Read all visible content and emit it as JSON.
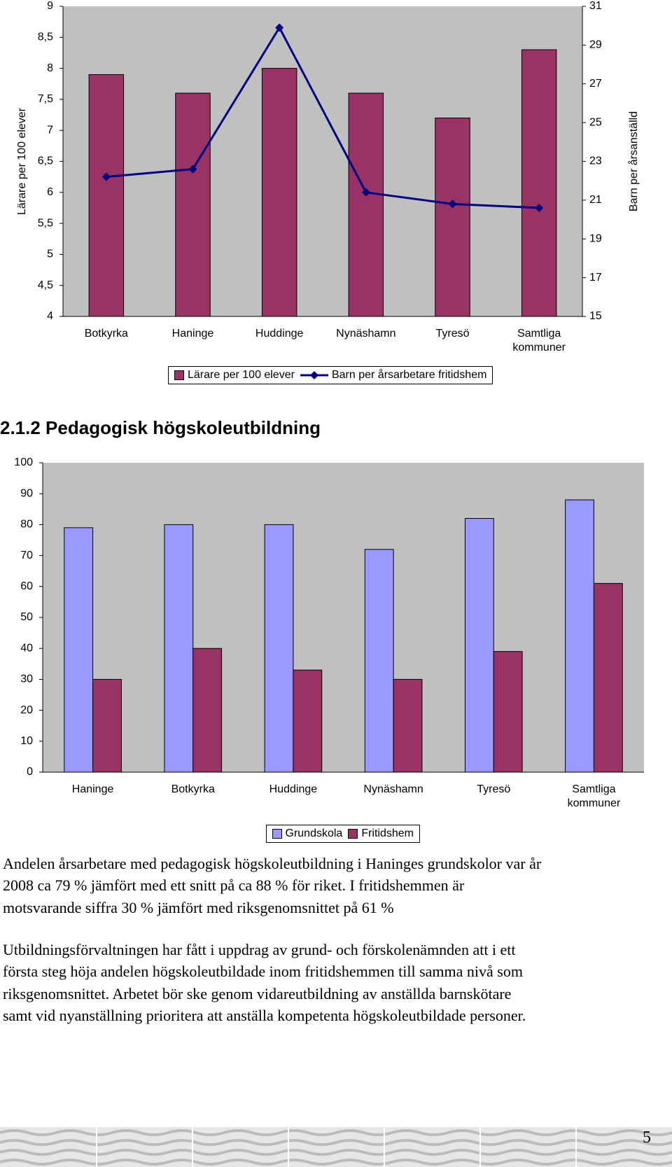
{
  "chart_data": [
    {
      "type": "bar",
      "categories": [
        "Botkyrka",
        "Haninge",
        "Huddinge",
        "Nynäshamn",
        "Tyresö",
        "Samtliga kommuner"
      ],
      "series": [
        {
          "name": "Lärare per 100 elever",
          "color": "#993366",
          "values": [
            7.9,
            7.6,
            8.0,
            7.6,
            7.2,
            8.3
          ]
        },
        {
          "name": "Barn per årsarbetare fritidshem",
          "color": "#000080",
          "type": "line",
          "axis": "y2",
          "values": [
            22.2,
            22.6,
            29.9,
            21.4,
            20.8,
            20.6
          ]
        }
      ],
      "ylabel": "Lärare per 100 elever",
      "y2label": "Barn per årsanställd",
      "ylim": [
        4,
        9
      ],
      "yticks": [
        4,
        {
          "value": 4.5,
          "label": "4,5"
        },
        5,
        {
          "value": 5.5,
          "label": "5,5"
        },
        6,
        {
          "value": 6.5,
          "label": "6,5"
        },
        7,
        {
          "value": 7.5,
          "label": "7,5"
        },
        8,
        {
          "value": 8.5,
          "label": "8,5"
        },
        9
      ],
      "y2lim": [
        15,
        31
      ],
      "y2ticks": [
        15,
        17,
        19,
        21,
        23,
        25,
        27,
        29,
        31
      ],
      "grid": false,
      "legend": "bottom"
    },
    {
      "type": "bar",
      "categories": [
        "Haninge",
        "Botkyrka",
        "Huddinge",
        "Nynäshamn",
        "Tyresö",
        "Samtliga kommuner"
      ],
      "series": [
        {
          "name": "Grundskola",
          "color": "#9999ff",
          "values": [
            79,
            80,
            80,
            72,
            82,
            88
          ]
        },
        {
          "name": "Fritidshem",
          "color": "#993366",
          "values": [
            30,
            40,
            33,
            30,
            39,
            61
          ]
        }
      ],
      "ylim": [
        0,
        100
      ],
      "yticks": [
        0,
        10,
        20,
        30,
        40,
        50,
        60,
        70,
        80,
        90,
        100
      ],
      "grid": false,
      "legend": "bottom"
    }
  ],
  "heading": "2.1.2 Pedagogisk högskoleutbildning",
  "paragraphs": [
    [
      "Andelen årsarbetare med pedagogisk högskoleutbildning i Haninges grundskolor var år",
      "2008 ca 79 % jämfört med ett snitt på ca 88 % för riket. I fritidshemmen är",
      "motsvarande siffra 30 % jämfört med riksgenomsnittet på 61 %"
    ],
    [
      "Utbildningsförvaltningen har fått i uppdrag av grund- och förskolenämnden att i ett",
      "första steg höja andelen högskoleutbildade inom fritidshemmen till samma nivå som",
      "riksgenomsnittet. Arbetet bör ske genom vidareutbildning av anställda barnskötare",
      "samt vid nyanställning prioritera att anställa kompetenta högskoleutbildade personer."
    ]
  ],
  "page_number": "5"
}
